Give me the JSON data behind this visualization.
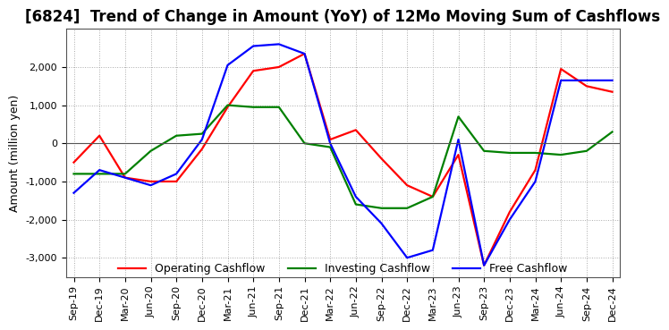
{
  "title": "[6824]  Trend of Change in Amount (YoY) of 12Mo Moving Sum of Cashflows",
  "ylabel": "Amount (million yen)",
  "x_labels": [
    "Sep-19",
    "Dec-19",
    "Mar-20",
    "Jun-20",
    "Sep-20",
    "Dec-20",
    "Mar-21",
    "Jun-21",
    "Sep-21",
    "Dec-21",
    "Mar-22",
    "Jun-22",
    "Sep-22",
    "Dec-22",
    "Mar-23",
    "Jun-23",
    "Sep-23",
    "Dec-23",
    "Mar-24",
    "Jun-24",
    "Sep-24",
    "Dec-24"
  ],
  "operating": [
    -500,
    200,
    -900,
    -1000,
    -1000,
    -150,
    950,
    1900,
    2000,
    2350,
    100,
    350,
    -400,
    -1100,
    -1400,
    -300,
    -3200,
    -1800,
    -700,
    1950,
    1500,
    1350
  ],
  "investing": [
    -800,
    -800,
    -800,
    -200,
    200,
    250,
    1000,
    950,
    950,
    0,
    -100,
    -1600,
    -1700,
    -1700,
    -1400,
    700,
    -200,
    -250,
    -250,
    -300,
    -200,
    300
  ],
  "free": [
    -1300,
    -700,
    -900,
    -1100,
    -800,
    100,
    2050,
    2550,
    2600,
    2350,
    0,
    -1400,
    -2100,
    -3000,
    -2800,
    100,
    -3200,
    -2000,
    -1000,
    1650,
    1650,
    1650
  ],
  "ylim": [
    -3500,
    3000
  ],
  "yticks": [
    -3000,
    -2000,
    -1000,
    0,
    1000,
    2000
  ],
  "operating_color": "#ff0000",
  "investing_color": "#008000",
  "free_color": "#0000ff",
  "background_color": "#ffffff",
  "grid_color": "#aaaaaa",
  "title_fontsize": 12,
  "axis_fontsize": 9,
  "tick_fontsize": 8,
  "legend_fontsize": 9
}
